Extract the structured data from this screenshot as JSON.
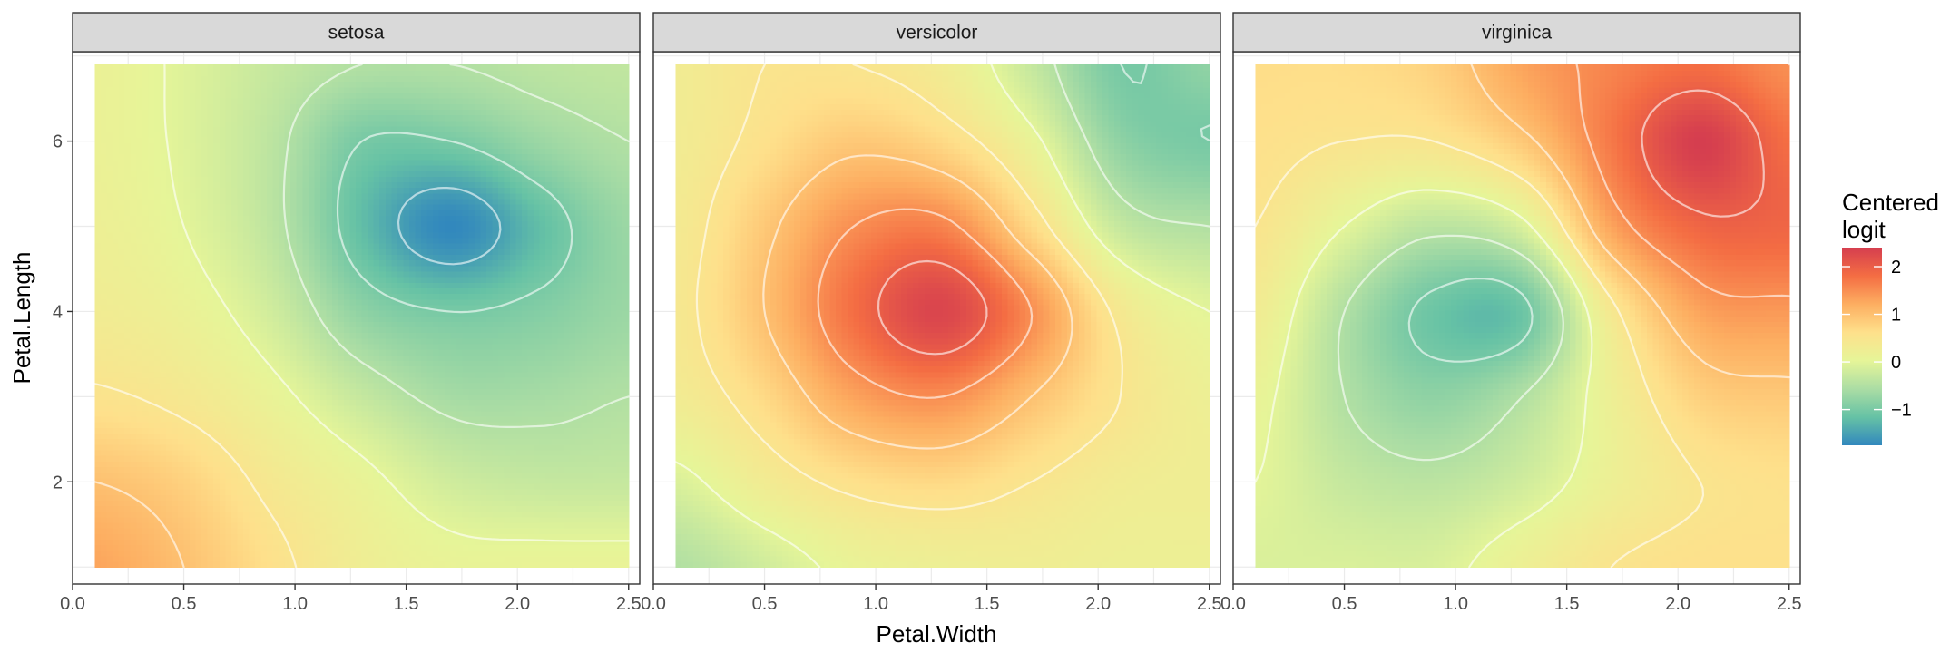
{
  "chart_data": {
    "type": "heatmap",
    "facet_by": "Species",
    "panels": [
      {
        "label": "setosa",
        "grid": {
          "x": [
            0.1,
            0.5,
            0.9,
            1.3,
            1.7,
            2.1,
            2.5
          ],
          "y": [
            1.0,
            2.0,
            3.0,
            4.0,
            5.0,
            6.0,
            6.9
          ],
          "z": [
            [
              1.3,
              1.0,
              0.6,
              0.25,
              0.1,
              0.1,
              0.1
            ],
            [
              1.0,
              0.8,
              0.4,
              0.1,
              -0.2,
              -0.3,
              -0.3
            ],
            [
              0.55,
              0.4,
              0.1,
              -0.3,
              -0.6,
              -0.6,
              -0.5
            ],
            [
              0.3,
              0.15,
              -0.2,
              -0.8,
              -1.0,
              -0.9,
              -0.7
            ],
            [
              0.2,
              0.0,
              -0.4,
              -1.2,
              -1.75,
              -1.2,
              -0.7
            ],
            [
              0.15,
              -0.05,
              -0.4,
              -1.0,
              -1.0,
              -0.7,
              -0.5
            ],
            [
              0.15,
              -0.05,
              -0.3,
              -0.5,
              -0.5,
              -0.4,
              -0.35
            ]
          ]
        }
      },
      {
        "label": "versicolor",
        "grid": {
          "x": [
            0.1,
            0.5,
            0.9,
            1.3,
            1.7,
            2.1,
            2.5
          ],
          "y": [
            1.0,
            2.0,
            3.0,
            4.0,
            5.0,
            6.0,
            6.9
          ],
          "z": [
            [
              -0.5,
              -0.2,
              0.1,
              0.2,
              0.25,
              0.2,
              0.2
            ],
            [
              -0.1,
              0.3,
              0.6,
              0.7,
              0.5,
              0.3,
              0.25
            ],
            [
              0.3,
              0.7,
              1.3,
              1.5,
              1.0,
              0.5,
              0.2
            ],
            [
              0.4,
              1.0,
              1.8,
              2.3,
              1.5,
              0.4,
              0.0
            ],
            [
              0.35,
              0.9,
              1.5,
              1.6,
              0.7,
              -0.3,
              -0.5
            ],
            [
              0.3,
              0.6,
              0.9,
              0.7,
              0.1,
              -0.8,
              -1.0
            ],
            [
              0.3,
              0.5,
              0.5,
              0.3,
              -0.3,
              -1.0,
              -0.8
            ]
          ]
        }
      },
      {
        "label": "virginica",
        "grid": {
          "x": [
            0.1,
            0.5,
            0.9,
            1.3,
            1.7,
            2.1,
            2.5
          ],
          "y": [
            1.0,
            2.0,
            3.0,
            4.0,
            5.0,
            6.0,
            6.9
          ],
          "z": [
            [
              -0.1,
              -0.1,
              -0.1,
              0.2,
              0.5,
              0.6,
              0.6
            ],
            [
              0.0,
              -0.3,
              -0.4,
              -0.2,
              0.2,
              0.5,
              0.6
            ],
            [
              0.1,
              -0.5,
              -0.8,
              -0.5,
              0.2,
              0.8,
              0.9
            ],
            [
              0.3,
              -0.5,
              -1.1,
              -1.1,
              0.4,
              1.3,
              1.4
            ],
            [
              0.5,
              0.0,
              -0.4,
              -0.1,
              1.3,
              1.9,
              1.9
            ],
            [
              0.6,
              0.5,
              0.5,
              0.9,
              1.7,
              2.4,
              1.8
            ],
            [
              0.65,
              0.65,
              0.8,
              1.3,
              1.6,
              1.8,
              1.5
            ]
          ]
        }
      }
    ],
    "contour_levels": [
      -1.5,
      -1.0,
      -0.5,
      0.0,
      0.5,
      1.0,
      1.5,
      2.0
    ],
    "fill_scale": {
      "title": "Centered\nlogit",
      "limits": [
        -1.75,
        2.4
      ],
      "breaks": [
        -1,
        0,
        1,
        2
      ],
      "break_labels": [
        "−1",
        "0",
        "1",
        "2"
      ],
      "colors": [
        "#3288BD",
        "#66C2A5",
        "#ABDDA4",
        "#E6F598",
        "#FEE08B",
        "#FDAE61",
        "#F46D43",
        "#D53E4F"
      ]
    },
    "xlabel": "Petal.Width",
    "ylabel": "Petal.Length",
    "xlim": [
      0.0,
      2.55
    ],
    "ylim": [
      0.8,
      7.05
    ],
    "xticks": [
      0.0,
      0.5,
      1.0,
      1.5,
      2.0,
      2.5
    ],
    "xtick_labels": [
      "0.0",
      "0.5",
      "1.0",
      "1.5",
      "2.0",
      "2.5"
    ],
    "yticks": [
      2,
      4,
      6
    ],
    "ytick_labels": [
      "2",
      "4",
      "6"
    ],
    "grid": true,
    "legend_position": "right",
    "style": {
      "strip_fill": "#D9D9D9",
      "panel_border": "#333333",
      "gridline": "#EBEBEB",
      "contour_color": "#FFFFFF"
    }
  }
}
